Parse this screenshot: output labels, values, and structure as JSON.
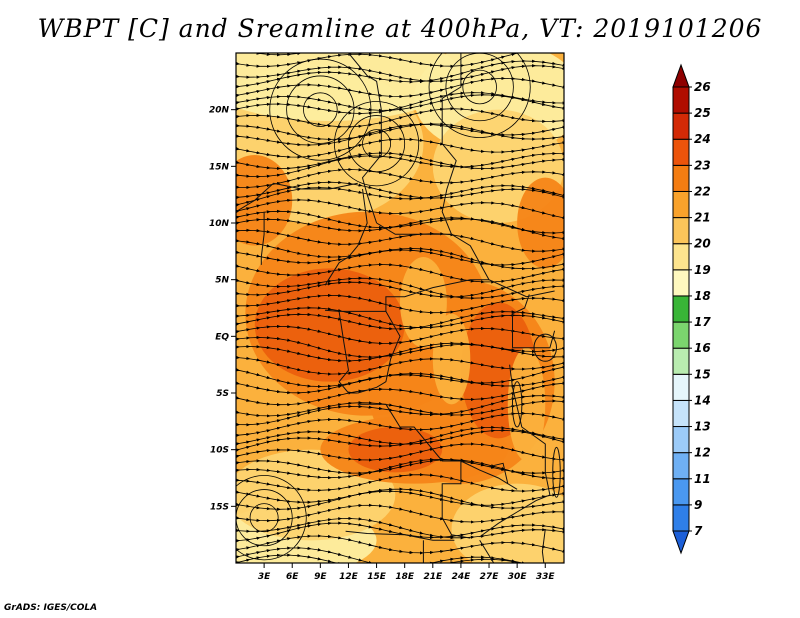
{
  "title": "WBPT [C] and Sreamline at 400hPa, VT: 2019101206",
  "credit": "GrADS: IGES/COLA",
  "map": {
    "projection": "latlon",
    "lon_range": [
      0,
      35
    ],
    "lat_range": [
      -20,
      25
    ],
    "lon_ticks": [
      {
        "value": 3,
        "label": "3E"
      },
      {
        "value": 6,
        "label": "6E"
      },
      {
        "value": 9,
        "label": "9E"
      },
      {
        "value": 12,
        "label": "12E"
      },
      {
        "value": 15,
        "label": "15E"
      },
      {
        "value": 18,
        "label": "18E"
      },
      {
        "value": 21,
        "label": "21E"
      },
      {
        "value": 24,
        "label": "24E"
      },
      {
        "value": 27,
        "label": "27E"
      },
      {
        "value": 30,
        "label": "30E"
      },
      {
        "value": 33,
        "label": "33E"
      }
    ],
    "lat_ticks": [
      {
        "value": 20,
        "label": "20N"
      },
      {
        "value": 15,
        "label": "15N"
      },
      {
        "value": 10,
        "label": "10N"
      },
      {
        "value": 5,
        "label": "5N"
      },
      {
        "value": 0,
        "label": "EQ"
      },
      {
        "value": -5,
        "label": "5S"
      },
      {
        "value": -10,
        "label": "10S"
      },
      {
        "value": -15,
        "label": "15S"
      }
    ],
    "field_colors": {
      "19": "#fdeea0",
      "20": "#fdd470",
      "21": "#fbb13d",
      "22": "#f58518",
      "23": "#eb5f0d"
    },
    "line_color": "#000000"
  },
  "colorbar": {
    "levels": [
      "7",
      "9",
      "11",
      "12",
      "13",
      "14",
      "15",
      "16",
      "17",
      "18",
      "19",
      "20",
      "21",
      "22",
      "23",
      "24",
      "25",
      "26"
    ],
    "colors": [
      "#1c5fd8",
      "#2f7fe8",
      "#4a98f0",
      "#6fb0f4",
      "#9ccbf8",
      "#c6e3fa",
      "#e6f6fb",
      "#b9ecb0",
      "#7bd56e",
      "#39b537",
      "#fef8bf",
      "#fde48e",
      "#fbc55a",
      "#f9a22b",
      "#f47d12",
      "#ec540b",
      "#d32a06",
      "#b00d00",
      "#8e0000"
    ]
  }
}
